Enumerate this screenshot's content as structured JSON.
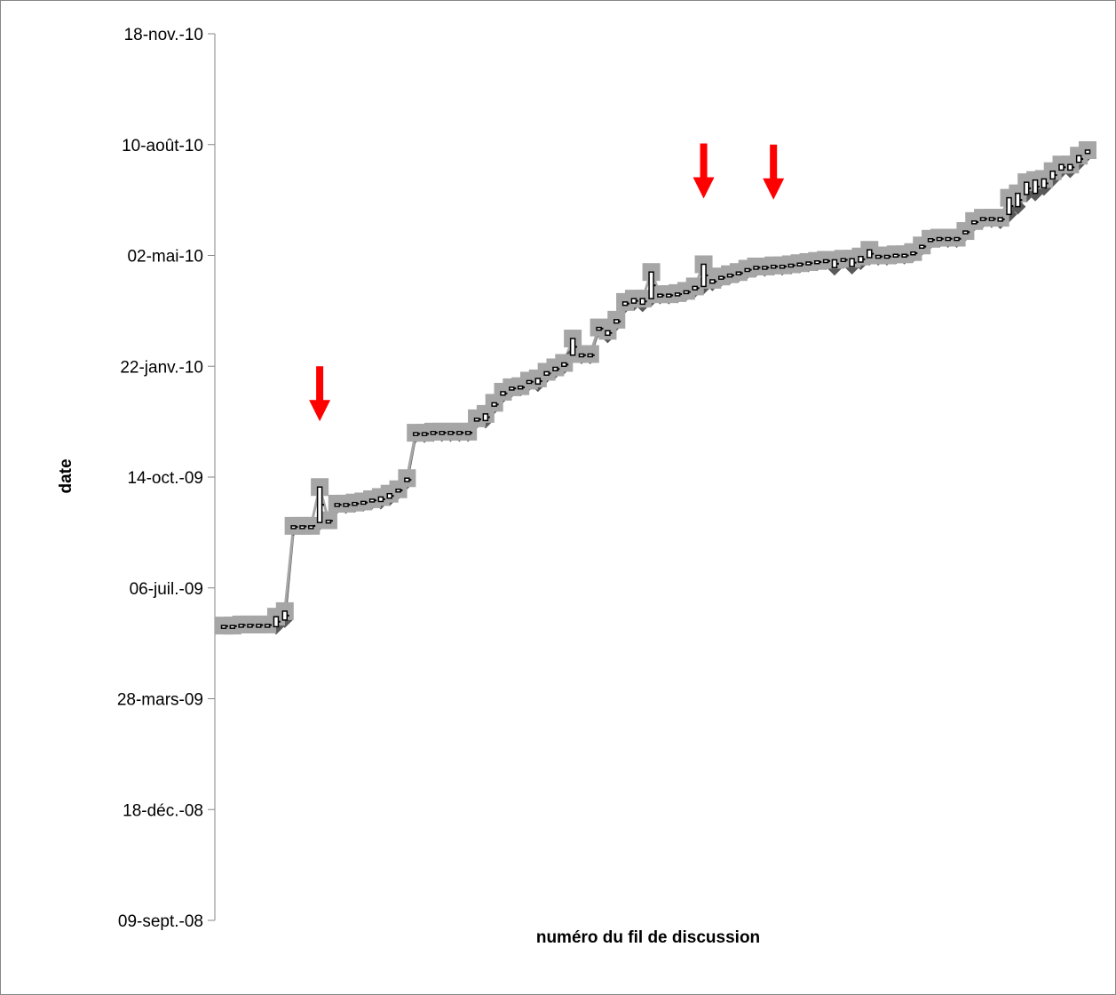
{
  "chart_data": {
    "type": "scatter",
    "xlabel": "numéro du fil de discussion",
    "ylabel": "date",
    "y_axis": {
      "scale": "date",
      "min": "2008-09-09",
      "max": "2010-11-18",
      "ticks": [
        {
          "date": "2008-09-09",
          "label": "09-sept.-08"
        },
        {
          "date": "2008-12-18",
          "label": "18-déc.-08"
        },
        {
          "date": "2009-03-28",
          "label": "28-mars-09"
        },
        {
          "date": "2009-07-06",
          "label": "06-juil.-09"
        },
        {
          "date": "2009-10-14",
          "label": "14-oct.-09"
        },
        {
          "date": "2010-01-22",
          "label": "22-janv.-10"
        },
        {
          "date": "2010-05-02",
          "label": "02-mai-10"
        },
        {
          "date": "2010-08-10",
          "label": "10-août-10"
        },
        {
          "date": "2010-11-18",
          "label": "18-nov.-10"
        }
      ]
    },
    "x_axis": {
      "min": 1,
      "max": 100,
      "tick_labels": "none"
    },
    "grid": false,
    "legend": "none",
    "colors": {
      "marker": "#a6a6a6",
      "line": "#a6a6a6",
      "low_marker": "#595959",
      "arrow": "#ff0000",
      "dash": "#000000"
    },
    "series": [
      {
        "marker": "square",
        "x": [
          1,
          2,
          3,
          4,
          5,
          6,
          7,
          8,
          9,
          10,
          11,
          12,
          13,
          14,
          15,
          16,
          17,
          18,
          19,
          20,
          21,
          22,
          23,
          24,
          25,
          26,
          27,
          28,
          29,
          30,
          31,
          32,
          33,
          34,
          35,
          36,
          37,
          38,
          39,
          40,
          41,
          42,
          43,
          44,
          45,
          46,
          47,
          48,
          49,
          50,
          51,
          52,
          53,
          54,
          55,
          56,
          57,
          58,
          59,
          60,
          61,
          62,
          63,
          64,
          65,
          66,
          67,
          68,
          69,
          70,
          71,
          72,
          73,
          74,
          75,
          76,
          77,
          78,
          79,
          80,
          81,
          82,
          83,
          84,
          85,
          86,
          87,
          88,
          89,
          90,
          91,
          92,
          93,
          94,
          95,
          96,
          97,
          98,
          99,
          100
        ],
        "y": [
          "2009-06-02",
          "2009-06-02",
          "2009-06-03",
          "2009-06-03",
          "2009-06-03",
          "2009-06-03",
          "2009-06-10",
          "2009-06-15",
          "2009-08-31",
          "2009-08-31",
          "2009-08-31",
          "2009-10-05",
          "2009-09-05",
          "2009-09-20",
          "2009-09-20",
          "2009-09-21",
          "2009-09-22",
          "2009-09-24",
          "2009-09-26",
          "2009-09-29",
          "2009-10-03",
          "2009-10-13",
          "2009-11-23",
          "2009-11-23",
          "2009-11-24",
          "2009-11-24",
          "2009-11-24",
          "2009-11-24",
          "2009-11-24",
          "2009-12-06",
          "2009-12-10",
          "2009-12-20",
          "2009-12-30",
          "2010-01-03",
          "2010-01-04",
          "2010-01-09",
          "2010-01-11",
          "2010-01-17",
          "2010-01-21",
          "2010-01-25",
          "2010-02-16",
          "2010-02-02",
          "2010-02-02",
          "2010-02-26",
          "2010-02-23",
          "2010-03-05",
          "2010-03-21",
          "2010-03-24",
          "2010-03-24",
          "2010-04-17",
          "2010-03-28",
          "2010-03-28",
          "2010-03-29",
          "2010-03-31",
          "2010-04-04",
          "2010-04-24",
          "2010-04-10",
          "2010-04-13",
          "2010-04-15",
          "2010-04-17",
          "2010-04-20",
          "2010-04-22",
          "2010-04-22",
          "2010-04-23",
          "2010-04-23",
          "2010-04-24",
          "2010-04-25",
          "2010-04-26",
          "2010-04-27",
          "2010-04-28",
          "2010-04-28",
          "2010-04-29",
          "2010-04-29",
          "2010-05-01",
          "2010-05-07",
          "2010-05-02",
          "2010-05-02",
          "2010-05-03",
          "2010-05-03",
          "2010-05-05",
          "2010-05-11",
          "2010-05-17",
          "2010-05-18",
          "2010-05-18",
          "2010-05-18",
          "2010-05-24",
          "2010-06-02",
          "2010-06-05",
          "2010-06-05",
          "2010-06-05",
          "2010-06-23",
          "2010-06-27",
          "2010-07-07",
          "2010-07-09",
          "2010-07-10",
          "2010-07-17",
          "2010-07-23",
          "2010-07-23",
          "2010-07-31",
          "2010-08-05"
        ]
      },
      {
        "marker": "diamond",
        "x": [
          1,
          2,
          3,
          4,
          5,
          6,
          7,
          8,
          9,
          10,
          11,
          12,
          13,
          14,
          15,
          16,
          17,
          18,
          19,
          20,
          21,
          22,
          23,
          24,
          25,
          26,
          27,
          28,
          29,
          30,
          31,
          32,
          33,
          34,
          35,
          36,
          37,
          38,
          39,
          40,
          41,
          42,
          43,
          44,
          45,
          46,
          47,
          48,
          49,
          50,
          51,
          52,
          53,
          54,
          55,
          56,
          57,
          58,
          59,
          60,
          61,
          62,
          63,
          64,
          65,
          66,
          67,
          68,
          69,
          70,
          71,
          72,
          73,
          74,
          75,
          76,
          77,
          78,
          79,
          80,
          81,
          82,
          83,
          84,
          85,
          86,
          87,
          88,
          89,
          90,
          91,
          92,
          93,
          94,
          95,
          96,
          97,
          98,
          99,
          100
        ],
        "y": [
          "2009-06-01",
          "2009-06-01",
          "2009-06-02",
          "2009-06-02",
          "2009-06-02",
          "2009-06-02",
          "2009-06-01",
          "2009-06-07",
          "2009-08-29",
          "2009-08-30",
          "2009-08-31",
          "2009-09-03",
          "2009-09-04",
          "2009-09-18",
          "2009-09-18",
          "2009-09-19",
          "2009-09-20",
          "2009-09-22",
          "2009-09-22",
          "2009-09-25",
          "2009-10-01",
          "2009-10-10",
          "2009-11-21",
          "2009-11-21",
          "2009-11-22",
          "2009-11-22",
          "2009-11-22",
          "2009-11-22",
          "2009-11-22",
          "2009-12-04",
          "2009-12-04",
          "2009-12-17",
          "2009-12-27",
          "2010-01-01",
          "2010-01-02",
          "2010-01-07",
          "2010-01-06",
          "2010-01-14",
          "2010-01-18",
          "2010-01-22",
          "2010-02-01",
          "2010-01-31",
          "2010-01-31",
          "2010-02-24",
          "2010-02-19",
          "2010-03-02",
          "2010-03-18",
          "2010-03-20",
          "2010-03-19",
          "2010-03-24",
          "2010-03-26",
          "2010-03-26",
          "2010-03-27",
          "2010-03-29",
          "2010-04-01",
          "2010-04-04",
          "2010-04-07",
          "2010-04-11",
          "2010-04-13",
          "2010-04-15",
          "2010-04-18",
          "2010-04-20",
          "2010-04-20",
          "2010-04-21",
          "2010-04-21",
          "2010-04-22",
          "2010-04-23",
          "2010-04-24",
          "2010-04-25",
          "2010-04-26",
          "2010-04-21",
          "2010-04-27",
          "2010-04-22",
          "2010-04-26",
          "2010-04-30",
          "2010-04-30",
          "2010-04-30",
          "2010-05-01",
          "2010-05-01",
          "2010-05-03",
          "2010-05-09",
          "2010-05-15",
          "2010-05-16",
          "2010-05-16",
          "2010-05-16",
          "2010-05-22",
          "2010-05-31",
          "2010-06-03",
          "2010-06-03",
          "2010-06-02",
          "2010-06-08",
          "2010-06-15",
          "2010-06-26",
          "2010-06-27",
          "2010-07-02",
          "2010-07-10",
          "2010-07-18",
          "2010-07-18",
          "2010-07-25",
          "2010-08-02"
        ]
      }
    ],
    "annotations": [
      {
        "type": "arrow",
        "direction": "down",
        "x": 12
      },
      {
        "type": "arrow",
        "direction": "down",
        "x": 56
      },
      {
        "type": "arrow",
        "direction": "down",
        "x": 64
      }
    ]
  }
}
